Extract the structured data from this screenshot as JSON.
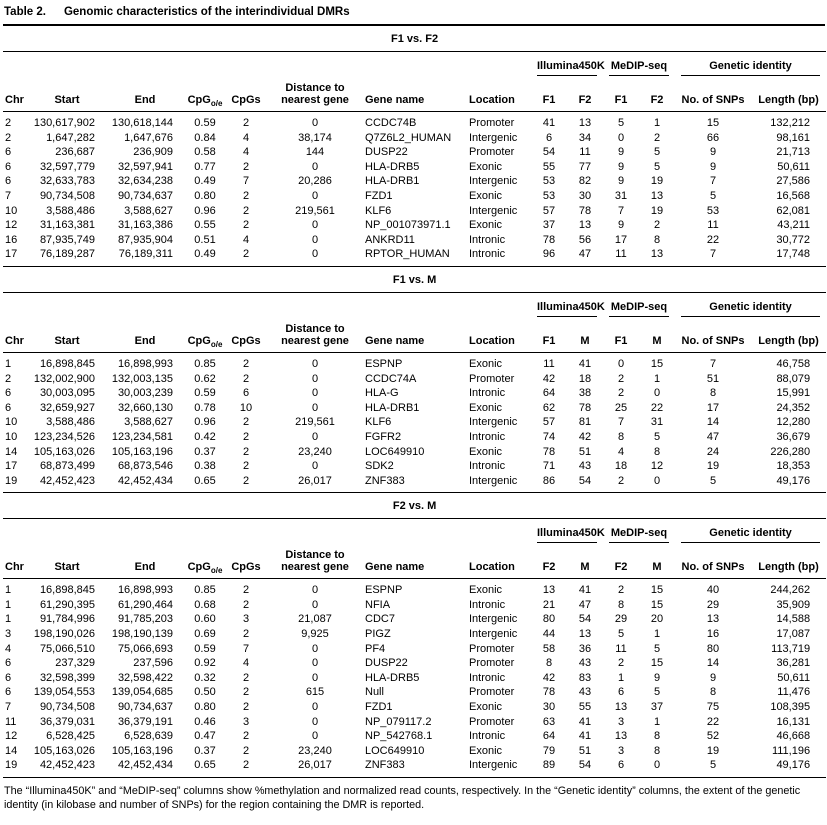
{
  "caption": {
    "label": "Table 2.",
    "title": "Genomic characteristics of the interindividual DMRs"
  },
  "column_groups": [
    {
      "id": "illumina450k",
      "label": "Illumina450K"
    },
    {
      "id": "medip-seq",
      "label": "MeDIP-seq"
    },
    {
      "id": "genetic-identity",
      "label": "Genetic identity"
    }
  ],
  "base_columns": [
    {
      "id": "chr",
      "label": "Chr"
    },
    {
      "id": "start",
      "label": "Start"
    },
    {
      "id": "end",
      "label": "End"
    },
    {
      "id": "cpg-oe",
      "label": "CpG",
      "sub": "o/e"
    },
    {
      "id": "cpgs",
      "label": "CpGs"
    },
    {
      "id": "distance-to-nearest-gene",
      "label": "Distance to\nnearest gene"
    },
    {
      "id": "gene-name",
      "label": "Gene name"
    },
    {
      "id": "location",
      "label": "Location"
    }
  ],
  "identity_columns": [
    {
      "id": "num-snps",
      "label": "No. of SNPs"
    },
    {
      "id": "length-bp",
      "label": "Length (bp)"
    }
  ],
  "sections": [
    {
      "id": "f1-vs-f2",
      "title": "F1 vs. F2",
      "individuals": [
        "F1",
        "F2"
      ],
      "rows": [
        [
          "2",
          "130,617,902",
          "130,618,144",
          "0.59",
          "2",
          "0",
          "CCDC74B",
          "Promoter",
          "41",
          "13",
          "5",
          "1",
          "15",
          "132,212"
        ],
        [
          "2",
          "1,647,282",
          "1,647,676",
          "0.84",
          "4",
          "38,174",
          "Q7Z6L2_HUMAN",
          "Intergenic",
          "6",
          "34",
          "0",
          "2",
          "66",
          "98,161"
        ],
        [
          "6",
          "236,687",
          "236,909",
          "0.58",
          "4",
          "144",
          "DUSP22",
          "Promoter",
          "54",
          "11",
          "9",
          "5",
          "9",
          "21,713"
        ],
        [
          "6",
          "32,597,779",
          "32,597,941",
          "0.77",
          "2",
          "0",
          "HLA-DRB5",
          "Exonic",
          "55",
          "77",
          "9",
          "5",
          "9",
          "50,611"
        ],
        [
          "6",
          "32,633,783",
          "32,634,238",
          "0.49",
          "7",
          "20,286",
          "HLA-DRB1",
          "Intergenic",
          "53",
          "82",
          "9",
          "19",
          "7",
          "27,586"
        ],
        [
          "7",
          "90,734,508",
          "90,734,637",
          "0.80",
          "2",
          "0",
          "FZD1",
          "Exonic",
          "53",
          "30",
          "31",
          "13",
          "5",
          "16,568"
        ],
        [
          "10",
          "3,588,486",
          "3,588,627",
          "0.96",
          "2",
          "219,561",
          "KLF6",
          "Intergenic",
          "57",
          "78",
          "7",
          "19",
          "53",
          "62,081"
        ],
        [
          "12",
          "31,163,381",
          "31,163,386",
          "0.55",
          "2",
          "0",
          "NP_001073971.1",
          "Exonic",
          "37",
          "13",
          "9",
          "2",
          "11",
          "43,211"
        ],
        [
          "16",
          "87,935,749",
          "87,935,904",
          "0.51",
          "4",
          "0",
          "ANKRD11",
          "Intronic",
          "78",
          "56",
          "17",
          "8",
          "22",
          "30,772"
        ],
        [
          "17",
          "76,189,287",
          "76,189,311",
          "0.49",
          "2",
          "0",
          "RPTOR_HUMAN",
          "Intronic",
          "96",
          "47",
          "11",
          "13",
          "7",
          "17,748"
        ]
      ]
    },
    {
      "id": "f1-vs-m",
      "title": "F1 vs. M",
      "individuals": [
        "F1",
        "M"
      ],
      "rows": [
        [
          "1",
          "16,898,845",
          "16,898,993",
          "0.85",
          "2",
          "0",
          "ESPNP",
          "Exonic",
          "11",
          "41",
          "0",
          "15",
          "7",
          "46,758"
        ],
        [
          "2",
          "132,002,900",
          "132,003,135",
          "0.62",
          "2",
          "0",
          "CCDC74A",
          "Promoter",
          "42",
          "18",
          "2",
          "1",
          "51",
          "88,079"
        ],
        [
          "6",
          "30,003,095",
          "30,003,239",
          "0.59",
          "6",
          "0",
          "HLA-G",
          "Intronic",
          "64",
          "38",
          "2",
          "0",
          "8",
          "15,991"
        ],
        [
          "6",
          "32,659,927",
          "32,660,130",
          "0.78",
          "10",
          "0",
          "HLA-DRB1",
          "Exonic",
          "62",
          "78",
          "25",
          "22",
          "17",
          "24,352"
        ],
        [
          "10",
          "3,588,486",
          "3,588,627",
          "0.96",
          "2",
          "219,561",
          "KLF6",
          "Intergenic",
          "57",
          "81",
          "7",
          "31",
          "14",
          "12,280"
        ],
        [
          "10",
          "123,234,526",
          "123,234,581",
          "0.42",
          "2",
          "0",
          "FGFR2",
          "Intronic",
          "74",
          "42",
          "8",
          "5",
          "47",
          "36,679"
        ],
        [
          "14",
          "105,163,026",
          "105,163,196",
          "0.37",
          "2",
          "23,240",
          "LOC649910",
          "Exonic",
          "78",
          "51",
          "4",
          "8",
          "24",
          "226,280"
        ],
        [
          "17",
          "68,873,499",
          "68,873,546",
          "0.38",
          "2",
          "0",
          "SDK2",
          "Intronic",
          "71",
          "43",
          "18",
          "12",
          "19",
          "18,353"
        ],
        [
          "19",
          "42,452,423",
          "42,452,434",
          "0.65",
          "2",
          "26,017",
          "ZNF383",
          "Intergenic",
          "86",
          "54",
          "2",
          "0",
          "5",
          "49,176"
        ]
      ]
    },
    {
      "id": "f2-vs-m",
      "title": "F2 vs. M",
      "individuals": [
        "F2",
        "M"
      ],
      "rows": [
        [
          "1",
          "16,898,845",
          "16,898,993",
          "0.85",
          "2",
          "0",
          "ESPNP",
          "Exonic",
          "13",
          "41",
          "2",
          "15",
          "40",
          "244,262"
        ],
        [
          "1",
          "61,290,395",
          "61,290,464",
          "0.68",
          "2",
          "0",
          "NFIA",
          "Intronic",
          "21",
          "47",
          "8",
          "15",
          "29",
          "35,909"
        ],
        [
          "1",
          "91,784,996",
          "91,785,203",
          "0.60",
          "3",
          "21,087",
          "CDC7",
          "Intergenic",
          "80",
          "54",
          "29",
          "20",
          "13",
          "14,588"
        ],
        [
          "3",
          "198,190,026",
          "198,190,139",
          "0.69",
          "2",
          "9,925",
          "PIGZ",
          "Intergenic",
          "44",
          "13",
          "5",
          "1",
          "16",
          "17,087"
        ],
        [
          "4",
          "75,066,510",
          "75,066,693",
          "0.59",
          "7",
          "0",
          "PF4",
          "Promoter",
          "58",
          "36",
          "11",
          "5",
          "80",
          "113,719"
        ],
        [
          "6",
          "237,329",
          "237,596",
          "0.92",
          "4",
          "0",
          "DUSP22",
          "Promoter",
          "8",
          "43",
          "2",
          "15",
          "14",
          "36,281"
        ],
        [
          "6",
          "32,598,399",
          "32,598,422",
          "0.32",
          "2",
          "0",
          "HLA-DRB5",
          "Intronic",
          "42",
          "83",
          "1",
          "9",
          "9",
          "50,611"
        ],
        [
          "6",
          "139,054,553",
          "139,054,685",
          "0.50",
          "2",
          "615",
          "Null",
          "Promoter",
          "78",
          "43",
          "6",
          "5",
          "8",
          "11,476"
        ],
        [
          "7",
          "90,734,508",
          "90,734,637",
          "0.80",
          "2",
          "0",
          "FZD1",
          "Exonic",
          "30",
          "55",
          "13",
          "37",
          "75",
          "108,395"
        ],
        [
          "11",
          "36,379,031",
          "36,379,191",
          "0.46",
          "3",
          "0",
          "NP_079117.2",
          "Promoter",
          "63",
          "41",
          "3",
          "1",
          "22",
          "16,131"
        ],
        [
          "12",
          "6,528,425",
          "6,528,639",
          "0.47",
          "2",
          "0",
          "NP_542768.1",
          "Intronic",
          "64",
          "41",
          "13",
          "8",
          "52",
          "46,668"
        ],
        [
          "14",
          "105,163,026",
          "105,163,196",
          "0.37",
          "2",
          "23,240",
          "LOC649910",
          "Exonic",
          "79",
          "51",
          "3",
          "8",
          "19",
          "111,196"
        ],
        [
          "19",
          "42,452,423",
          "42,452,434",
          "0.65",
          "2",
          "26,017",
          "ZNF383",
          "Intergenic",
          "89",
          "54",
          "6",
          "0",
          "5",
          "49,176"
        ]
      ]
    }
  ],
  "footnote": "The “Illumina450K” and “MeDIP-seq” columns show %methylation and normalized read counts, respectively. In the “Genetic identity” columns, the extent of the genetic identity (in kilobase and number of SNPs) for the region containing the DMR is reported."
}
